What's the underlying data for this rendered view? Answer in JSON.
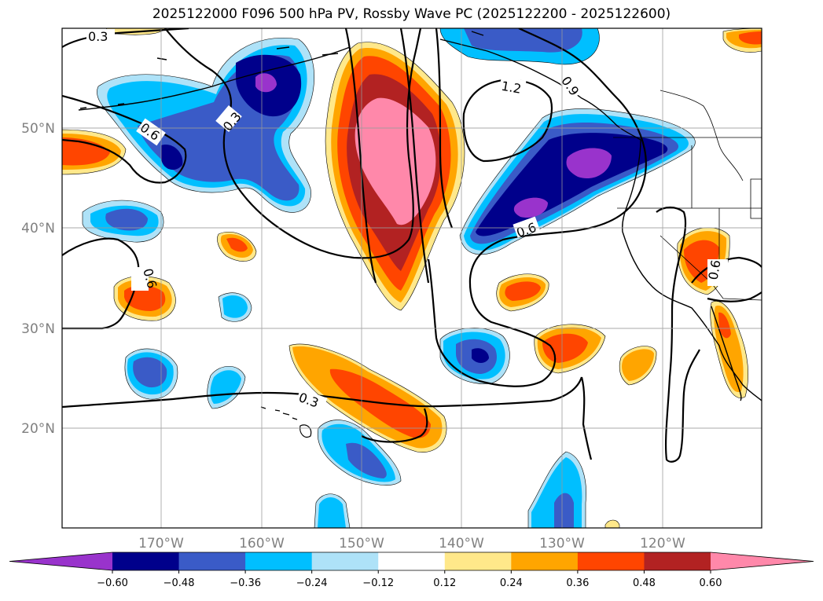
{
  "title": "2025122000 F096 500 hPa PV, Rossby Wave PC (2025122200 - 2025122600)",
  "lat_labels": [
    "50°N",
    "40°N",
    "30°N",
    "20°N"
  ],
  "lon_labels": [
    "170°W",
    "160°W",
    "150°W",
    "140°W",
    "130°W",
    "120°W"
  ],
  "contour_labels": [
    "0.3",
    "0.3",
    "0.6",
    "0.6",
    "1.2",
    "0.9",
    "0.6",
    "0.6",
    "0.3"
  ],
  "colorbar": {
    "colors": [
      "#9933cc",
      "#00008b",
      "#3a5bc7",
      "#00bfff",
      "#aee2f8",
      "#ffffff",
      "#ffe88a",
      "#ffa500",
      "#ff4500",
      "#b22222",
      "#ff88aa"
    ],
    "tick_labels": [
      "−0.60",
      "−0.48",
      "−0.36",
      "−0.24",
      "−0.12",
      "0.12",
      "0.24",
      "0.36",
      "0.48",
      "0.60"
    ]
  }
}
